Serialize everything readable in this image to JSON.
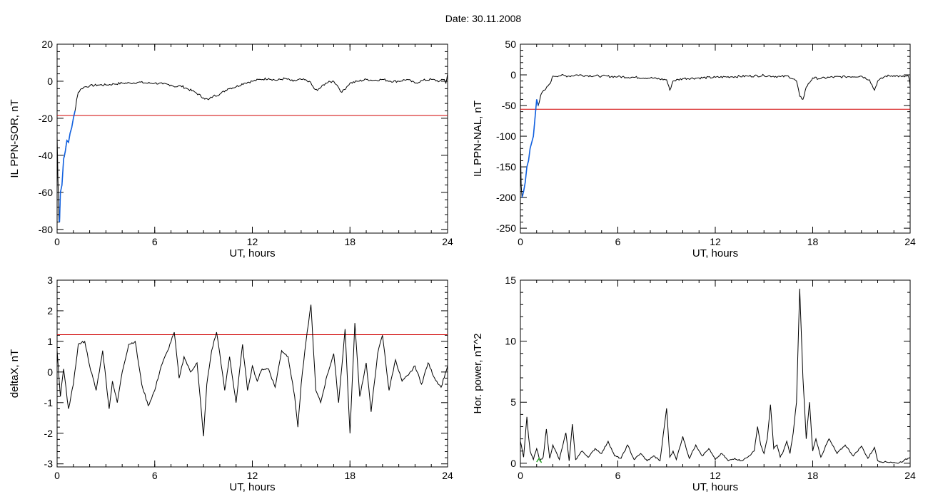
{
  "header": {
    "date_text": "Date:  30.11.2008"
  },
  "chart_data": [
    {
      "id": "panel-il-ppn-sor",
      "type": "line",
      "ylabel": "IL PPN-SOR, nT",
      "xlabel": "UT, hours",
      "xlim": [
        0,
        24
      ],
      "ylim": [
        -82,
        20
      ],
      "xticks": [
        0,
        6,
        12,
        18,
        24
      ],
      "yticks": [
        -80,
        -60,
        -40,
        -20,
        0,
        20
      ],
      "threshold": -18.5,
      "colors": {
        "series": "#000000",
        "threshold": "#d00000",
        "onset": "#1060e0"
      },
      "series": [
        {
          "x": [
            0,
            0.05,
            0.12,
            0.15,
            0.2,
            0.3,
            0.4,
            0.5,
            0.6,
            0.7,
            0.8,
            0.9,
            1.0,
            1.1,
            1.2,
            1.3,
            1.5,
            1.7,
            2,
            2.5,
            3,
            3.5,
            4,
            4.5,
            5,
            5.5,
            6,
            6.5,
            7,
            7.3,
            7.6,
            8,
            8.5,
            9,
            9.3,
            9.6,
            10,
            10.5,
            11,
            11.5,
            12,
            12.5,
            13,
            13.5,
            14,
            14.5,
            15,
            15.5,
            15.8,
            16,
            16.5,
            17,
            17.2,
            17.5,
            17.8,
            18,
            18.5,
            19,
            19.5,
            20,
            20.5,
            21,
            21.5,
            22,
            22.5,
            23,
            23.5,
            23.8,
            23.9,
            24
          ],
          "y": [
            -30,
            -52,
            -75,
            -76,
            -60,
            -56,
            -42,
            -38,
            -32,
            -33,
            -28,
            -25,
            -20,
            -16,
            -10,
            -6,
            -4,
            -3,
            -2.5,
            -2,
            -2,
            -1.5,
            -1,
            -1,
            -0.5,
            -1,
            -1,
            -1.5,
            -2,
            -3,
            -2.5,
            -4,
            -6,
            -9,
            -10,
            -8,
            -7,
            -4,
            -3,
            -1,
            0,
            1,
            1.5,
            0.5,
            1.5,
            0,
            1,
            0,
            -4,
            -5,
            -1,
            0,
            -2,
            -6,
            -3,
            -1,
            0,
            1,
            0.5,
            1,
            0,
            0,
            1,
            -1,
            0.5,
            1,
            0,
            1,
            -1,
            4
          ]
        }
      ]
    },
    {
      "id": "panel-il-ppn-nal",
      "type": "line",
      "ylabel": "IL PPN-NAL, nT",
      "xlabel": "UT, hours",
      "xlim": [
        0,
        24
      ],
      "ylim": [
        -258,
        50
      ],
      "xticks": [
        0,
        6,
        12,
        18,
        24
      ],
      "yticks": [
        -250,
        -200,
        -150,
        -100,
        -50,
        0,
        50
      ],
      "threshold": -56,
      "colors": {
        "series": "#000000",
        "threshold": "#d00000",
        "onset": "#1060e0"
      },
      "series": [
        {
          "x": [
            0,
            0.05,
            0.1,
            0.2,
            0.3,
            0.4,
            0.5,
            0.6,
            0.7,
            0.8,
            0.9,
            1.0,
            1.1,
            1.2,
            1.3,
            1.5,
            1.7,
            1.9,
            2,
            2.5,
            3,
            3.5,
            4,
            5,
            6,
            7,
            8,
            9,
            9.2,
            9.4,
            10,
            11,
            12,
            13,
            14,
            15,
            16,
            16.5,
            17,
            17.2,
            17.4,
            17.6,
            18,
            18.5,
            19,
            20,
            21,
            21.5,
            21.8,
            22,
            22.5,
            23,
            23.5,
            23.9,
            24
          ],
          "y": [
            -115,
            -180,
            -200,
            -190,
            -175,
            -150,
            -140,
            -120,
            -110,
            -100,
            -70,
            -40,
            -50,
            -40,
            -30,
            -25,
            -18,
            -10,
            -2,
            -1,
            -2,
            0,
            -1,
            -2,
            -3,
            -4,
            -5,
            -8,
            -25,
            -10,
            -6,
            -5,
            -4,
            -3,
            -2,
            -1,
            -3,
            -2,
            -10,
            -35,
            -40,
            -20,
            -5,
            -6,
            -4,
            -3,
            -2,
            -8,
            -25,
            -10,
            -2,
            -1,
            -3,
            -2,
            -18
          ]
        }
      ]
    },
    {
      "id": "panel-deltax",
      "type": "line",
      "ylabel": "deltaX, nT",
      "xlabel": "UT, hours",
      "xlim": [
        0,
        24
      ],
      "ylim": [
        -3.1,
        3
      ],
      "xticks": [
        0,
        6,
        12,
        18,
        24
      ],
      "yticks": [
        -3,
        -2,
        -1,
        0,
        1,
        2,
        3
      ],
      "threshold": 1.22,
      "colors": {
        "series": "#000000",
        "threshold": "#d00000"
      },
      "series": [
        {
          "x": [
            0,
            0.2,
            0.4,
            0.7,
            1,
            1.3,
            1.7,
            2,
            2.4,
            2.8,
            3.2,
            3.4,
            3.7,
            4,
            4.4,
            4.8,
            5.2,
            5.6,
            6,
            6.4,
            6.8,
            7.2,
            7.5,
            7.8,
            8.2,
            8.6,
            9,
            9.2,
            9.5,
            9.8,
            10,
            10.3,
            10.6,
            11,
            11.4,
            11.7,
            12,
            12.3,
            12.6,
            13,
            13.4,
            13.8,
            14.2,
            14.6,
            14.8,
            15,
            15.3,
            15.6,
            15.9,
            16.2,
            16.6,
            17,
            17.3,
            17.7,
            18,
            18.3,
            18.6,
            19,
            19.3,
            19.7,
            20,
            20.4,
            20.8,
            21.2,
            21.6,
            22,
            22.4,
            22.8,
            23.2,
            23.6,
            24
          ],
          "y": [
            0.7,
            -0.8,
            0.1,
            -1.2,
            -0.4,
            0.9,
            1.0,
            0.2,
            -0.6,
            0.7,
            -1.2,
            -0.3,
            -1.0,
            0.0,
            0.9,
            1.0,
            -0.4,
            -1.1,
            -0.6,
            0.2,
            0.7,
            1.3,
            -0.2,
            0.5,
            0.0,
            0.3,
            -2.1,
            -0.4,
            0.7,
            1.3,
            0.6,
            -0.6,
            0.5,
            -1.0,
            0.9,
            -0.6,
            0.2,
            -0.3,
            0.1,
            0.1,
            -0.5,
            0.7,
            0.5,
            -0.8,
            -1.8,
            -0.4,
            1.0,
            2.2,
            -0.6,
            -1.0,
            -0.1,
            0.6,
            -1.0,
            1.4,
            -2.0,
            1.6,
            -0.8,
            0.3,
            -1.3,
            0.6,
            1.2,
            -0.6,
            0.4,
            -0.3,
            -0.1,
            0.2,
            -0.4,
            0.3,
            -0.2,
            -0.5,
            0.2
          ]
        }
      ]
    },
    {
      "id": "panel-hor-power",
      "type": "line",
      "ylabel": "Hor. power, nT^2",
      "xlabel": "UT, hours",
      "xlim": [
        0,
        24
      ],
      "ylim": [
        -0.3,
        15
      ],
      "xticks": [
        0,
        6,
        12,
        18,
        24
      ],
      "yticks": [
        0,
        5,
        10,
        15
      ],
      "colors": {
        "series": "#000000",
        "onset": "#20a020"
      },
      "series": [
        {
          "x": [
            0,
            0.2,
            0.4,
            0.5,
            0.6,
            0.8,
            1,
            1.2,
            1.4,
            1.6,
            1.8,
            2,
            2.4,
            2.8,
            3,
            3.2,
            3.4,
            3.8,
            4.2,
            4.6,
            5,
            5.4,
            5.8,
            6.2,
            6.6,
            7,
            7.4,
            7.8,
            8.2,
            8.6,
            9,
            9.2,
            9.4,
            9.6,
            10,
            10.4,
            10.8,
            11.2,
            11.6,
            12,
            12.4,
            12.8,
            13.2,
            13.6,
            14,
            14.4,
            14.6,
            14.8,
            15,
            15.2,
            15.4,
            15.6,
            15.8,
            16,
            16.2,
            16.4,
            16.6,
            16.8,
            17,
            17.2,
            17.4,
            17.6,
            17.8,
            18,
            18.2,
            18.5,
            19,
            19.5,
            20,
            20.5,
            21,
            21.4,
            21.8,
            22,
            22.4,
            22.8,
            23.2,
            23.6,
            24
          ],
          "y": [
            1.8,
            0.5,
            3.8,
            2.2,
            1.0,
            0.3,
            1.2,
            0.2,
            0.5,
            2.8,
            0.4,
            1.5,
            0.3,
            2.5,
            0.2,
            3.2,
            0.3,
            1.0,
            0.5,
            1.2,
            0.8,
            1.8,
            0.6,
            0.4,
            1.5,
            0.3,
            0.8,
            0.2,
            0.6,
            0.2,
            4.5,
            0.5,
            1.0,
            0.3,
            2.2,
            0.4,
            1.5,
            0.6,
            1.2,
            0.3,
            0.8,
            0.2,
            0.4,
            0.2,
            0.5,
            1.0,
            3.0,
            1.5,
            0.8,
            2.0,
            4.8,
            1.2,
            1.5,
            0.5,
            1.0,
            1.8,
            0.8,
            2.5,
            5.0,
            14.3,
            7.0,
            2.0,
            5.0,
            1.0,
            2.0,
            0.5,
            2.0,
            0.8,
            1.5,
            0.6,
            1.4,
            0.4,
            1.3,
            0.2,
            0.1,
            0.1,
            0.0,
            0.2,
            0.5
          ]
        }
      ]
    }
  ]
}
